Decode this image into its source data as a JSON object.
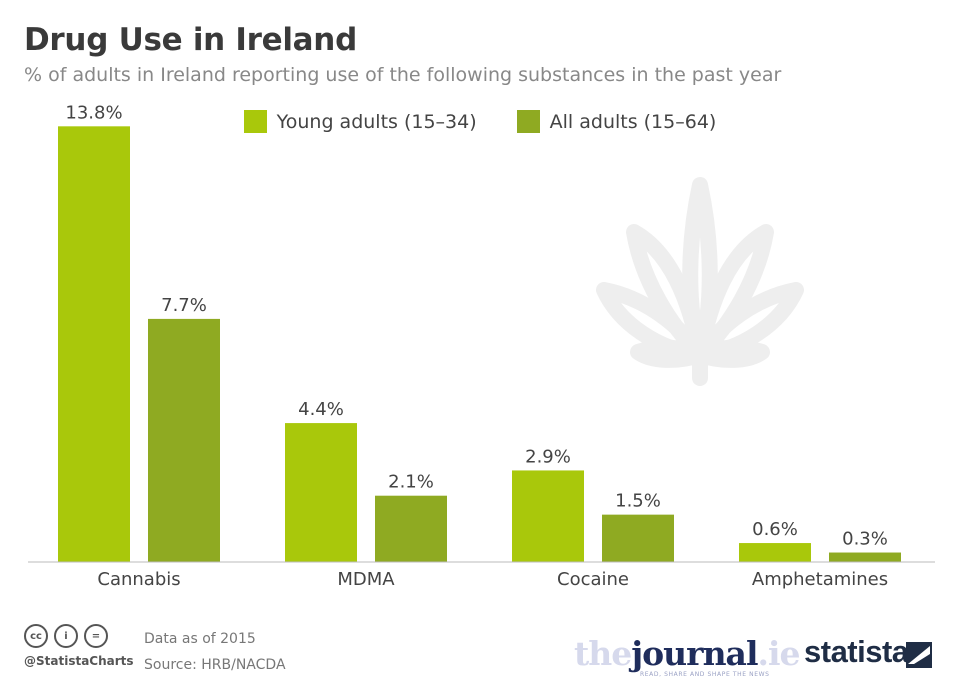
{
  "header": {
    "title": "Drug Use in Ireland",
    "subtitle": "% of adults in Ireland reporting use of the following substances in the past year"
  },
  "chart_data": {
    "type": "bar",
    "categories": [
      "Cannabis",
      "MDMA",
      "Cocaine",
      "Amphetamines"
    ],
    "series": [
      {
        "name": "Young adults (15–34)",
        "values": [
          13.8,
          4.4,
          2.9,
          0.6
        ],
        "labels": [
          "13.8%",
          "4.4%",
          "2.9%",
          "0.6%"
        ],
        "color": "#a9c80b"
      },
      {
        "name": "All adults (15–64)",
        "values": [
          7.7,
          2.1,
          1.5,
          0.3
        ],
        "labels": [
          "7.7%",
          "2.1%",
          "1.5%",
          "0.3%"
        ],
        "color": "#8faa22"
      }
    ],
    "ylim": [
      0,
      14
    ],
    "grid": false,
    "legend_position": "top-center",
    "title": "Drug Use in Ireland",
    "subtitle": "% of adults in Ireland reporting use of the following substances in the past year"
  },
  "footer": {
    "cc_icons": [
      "cc-icon",
      "attribution-icon",
      "no-derivatives-icon"
    ],
    "cc_glyphs": [
      "cc",
      "i",
      "="
    ],
    "handle": "@StatistaCharts",
    "data_note": "Data as of 2015",
    "source": "Source: HRB/NACDA"
  },
  "logos": {
    "journal": {
      "the": "the",
      "journal": "journal",
      "ie": ".ie",
      "tagline": "READ, SHARE AND SHAPE THE NEWS"
    },
    "statista": "statista"
  },
  "decoration": {
    "icon": "cannabis-leaf-icon",
    "color": "#eeeeee"
  }
}
